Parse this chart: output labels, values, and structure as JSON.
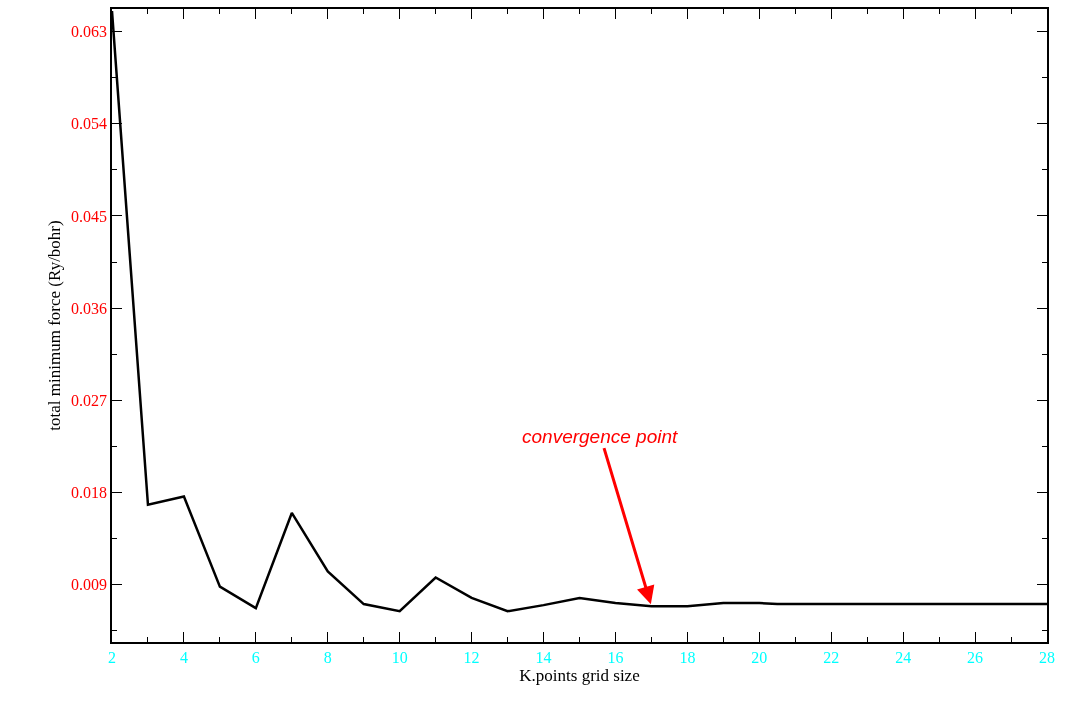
{
  "chart_data": {
    "type": "line",
    "xlabel": "K.points grid size",
    "ylabel": "total minimum force (Ry/bohr)",
    "x": [
      2,
      3,
      4,
      5,
      6,
      7,
      8,
      9,
      10,
      11,
      12,
      13,
      14,
      15,
      16,
      17,
      18,
      19,
      20,
      20.5,
      28
    ],
    "series": [
      {
        "color": "#000000",
        "values": [
          0.065,
          0.0168,
          0.0176,
          0.0088,
          0.0067,
          0.016,
          0.0103,
          0.0071,
          0.0064,
          0.0097,
          0.0077,
          0.0064,
          0.007,
          0.0077,
          0.0072,
          0.0069,
          0.0069,
          0.0072,
          0.0072,
          0.0071,
          0.0071
        ]
      }
    ],
    "xlim": [
      2,
      28
    ],
    "ylim": [
      0.0034,
      0.0652
    ],
    "xticks": [
      2,
      {
        "value": 3,
        "label": null
      },
      4,
      {
        "value": 5,
        "label": null
      },
      6,
      {
        "value": 7,
        "label": null
      },
      8,
      {
        "value": 9,
        "label": null
      },
      10,
      {
        "value": 11,
        "label": null
      },
      12,
      {
        "value": 13,
        "label": null
      },
      14,
      {
        "value": 15,
        "label": null
      },
      16,
      {
        "value": 17,
        "label": null
      },
      18,
      {
        "value": 19,
        "label": null
      },
      20,
      {
        "value": 21,
        "label": null
      },
      22,
      {
        "value": 23,
        "label": null
      },
      24,
      {
        "value": 25,
        "label": null
      },
      26,
      {
        "value": 27,
        "label": null
      },
      28
    ],
    "yticks": [
      {
        "value": 0.0045,
        "label": null
      },
      0.009,
      {
        "value": 0.0135,
        "label": null
      },
      0.018,
      {
        "value": 0.0225,
        "label": null
      },
      0.027,
      {
        "value": 0.0315,
        "label": null
      },
      0.036,
      {
        "value": 0.0405,
        "label": null
      },
      0.045,
      {
        "value": 0.0495,
        "label": null
      },
      0.054,
      {
        "value": 0.0585,
        "label": null
      },
      0.063
    ],
    "annotations": [
      {
        "text": "convergence point",
        "x": 17,
        "y": 0.0069
      }
    ],
    "marker": "none",
    "line_style": "solid"
  }
}
